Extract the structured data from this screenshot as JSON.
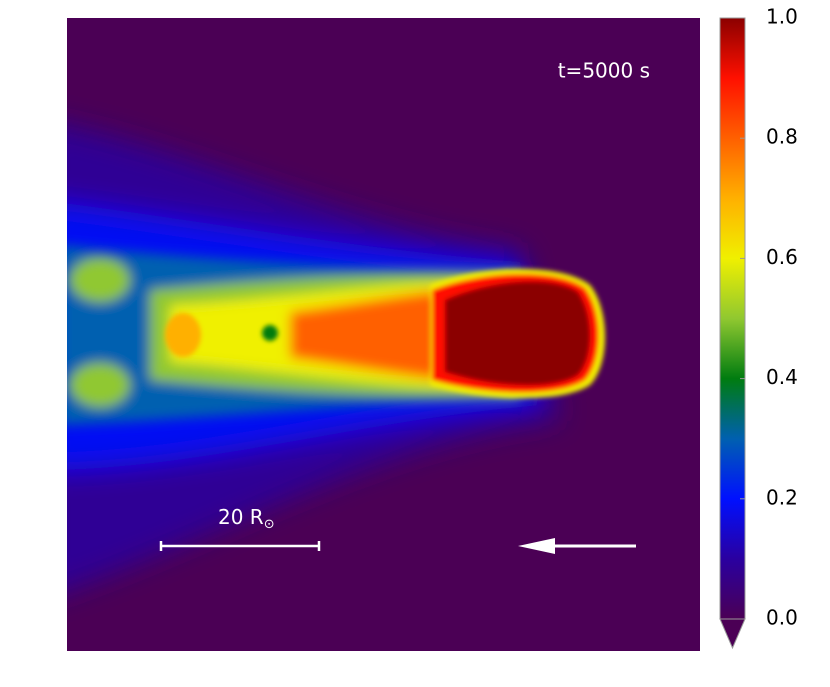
{
  "chart_data": {
    "type": "colormap-image",
    "annotations": {
      "time": "t=5000 s",
      "scale_bar": "20 R",
      "scale_bar_subscript": "⊙"
    },
    "colorbar": {
      "lim": [
        0,
        1
      ],
      "ticks": [
        {
          "value": 0,
          "label": "0.0"
        },
        0.2,
        0.4,
        0.6,
        0.8,
        {
          "value": 1,
          "label": "1.0"
        }
      ],
      "colormap": [
        "#4b0055",
        "#2a00a0",
        "#0010ff",
        "#0060b0",
        "#007c10",
        "#90c830",
        "#f0f000",
        "#ffb000",
        "#ff6000",
        "#ff1000",
        "#8b0000"
      ],
      "extend": "min"
    }
  }
}
